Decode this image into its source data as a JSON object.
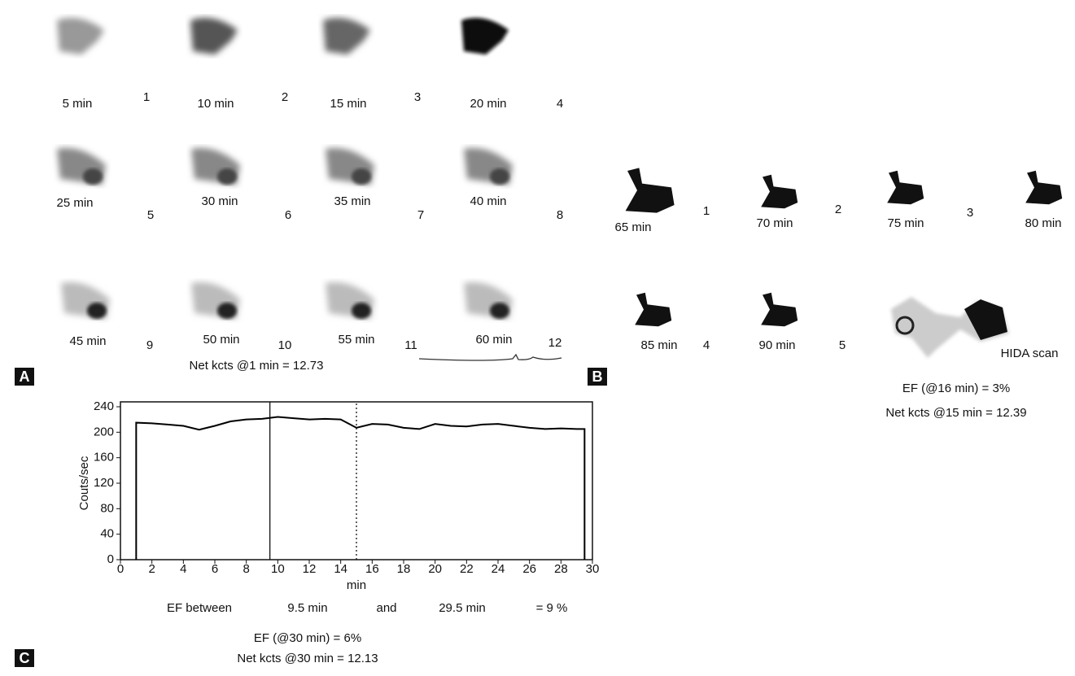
{
  "panel_a": {
    "letter": "A",
    "frames": [
      {
        "time": "5 min",
        "index": 1
      },
      {
        "time": "10 min",
        "index": 2
      },
      {
        "time": "15 min",
        "index": 3
      },
      {
        "time": "20 min",
        "index": 4
      },
      {
        "time": "25 min",
        "index": 5
      },
      {
        "time": "30 min",
        "index": 6
      },
      {
        "time": "35 min",
        "index": 7
      },
      {
        "time": "40 min",
        "index": 8
      },
      {
        "time": "45 min",
        "index": 9
      },
      {
        "time": "50 min",
        "index": 10
      },
      {
        "time": "55 min",
        "index": 11
      },
      {
        "time": "60 min",
        "index": 12
      }
    ],
    "net_kcts": "Net kcts @1 min = 12.73"
  },
  "panel_b": {
    "letter": "B",
    "frames": [
      {
        "time": "65 min",
        "index": 1
      },
      {
        "time": "70 min",
        "index": 2
      },
      {
        "time": "75 min",
        "index": 3
      },
      {
        "time": "80 min",
        "index": null
      },
      {
        "time": "85 min",
        "index": 4
      },
      {
        "time": "90 min",
        "index": 5
      }
    ],
    "hida": "HIDA scan",
    "ef": "EF (@16 min) = 3%",
    "net_kcts": "Net kcts @15 min = 12.39"
  },
  "panel_c": {
    "letter": "C"
  },
  "chart_data": {
    "type": "line",
    "x_label": "min",
    "y_label": "Couts/sec",
    "xlim": [
      0,
      30
    ],
    "ylim": [
      0,
      240
    ],
    "xticks": [
      0,
      2,
      4,
      6,
      8,
      10,
      12,
      14,
      16,
      18,
      20,
      22,
      24,
      26,
      28,
      30
    ],
    "yticks": [
      0,
      40,
      80,
      120,
      160,
      200,
      240
    ],
    "x": [
      1,
      1,
      2,
      3,
      4,
      5,
      6,
      7,
      8,
      9,
      10,
      11,
      12,
      13,
      14,
      15,
      16,
      17,
      18,
      19,
      20,
      21,
      22,
      23,
      24,
      25,
      26,
      27,
      28,
      29,
      29.5,
      29.5
    ],
    "values": [
      0,
      215,
      214,
      212,
      210,
      204,
      210,
      217,
      220,
      221,
      224,
      222,
      220,
      221,
      220,
      207,
      213,
      212,
      207,
      205,
      213,
      210,
      209,
      212,
      213,
      210,
      207,
      205,
      206,
      205,
      205,
      0
    ],
    "color": "#000000",
    "markers": [
      {
        "x": 9.5,
        "style": "solid"
      },
      {
        "x": 15,
        "style": "dotted"
      }
    ],
    "annotations": [
      "EF between",
      "9.5 min",
      "and",
      "29.5 min",
      "= 9 %",
      "EF (@30 min) = 6%",
      "Net kcts @30 min = 12.13"
    ]
  }
}
